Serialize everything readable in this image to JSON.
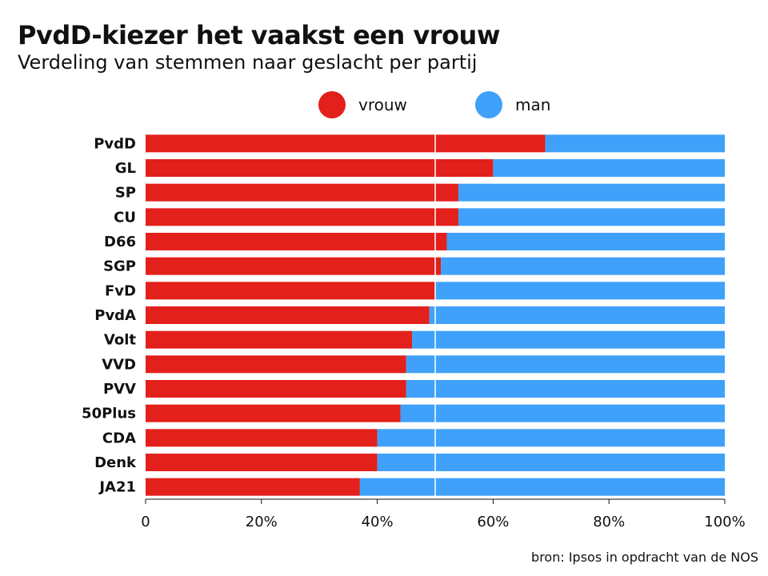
{
  "title": "PvdD-kiezer het vaakst een vrouw",
  "subtitle": "Verdeling van stemmen naar geslacht per partij",
  "source": "bron: Ipsos in opdracht van de NOS",
  "colors": {
    "vrouw": "#e3201b",
    "man": "#3fa1fa",
    "text": "#111111",
    "axis": "#111111",
    "gridline": "#ffffff",
    "background": "#ffffff"
  },
  "legend": [
    {
      "key": "vrouw",
      "label": "vrouw"
    },
    {
      "key": "man",
      "label": "man"
    }
  ],
  "chart_data": {
    "type": "bar",
    "orientation": "horizontal",
    "stacked": "percent",
    "categories": [
      "PvdD",
      "GL",
      "SP",
      "CU",
      "D66",
      "SGP",
      "FvD",
      "PvdA",
      "Volt",
      "VVD",
      "PVV",
      "50Plus",
      "CDA",
      "Denk",
      "JA21"
    ],
    "series": [
      {
        "name": "vrouw",
        "values": [
          69,
          60,
          54,
          54,
          52,
          51,
          50,
          49,
          46,
          45,
          45,
          44,
          40,
          40,
          37
        ]
      },
      {
        "name": "man",
        "values": [
          31,
          40,
          46,
          46,
          48,
          49,
          50,
          51,
          54,
          55,
          55,
          56,
          60,
          60,
          63
        ]
      }
    ],
    "xlim": [
      0,
      100
    ],
    "xticks": [
      0,
      20,
      40,
      60,
      80,
      100
    ],
    "xtick_labels": [
      "0",
      "20%",
      "40%",
      "60%",
      "80%",
      "100%"
    ],
    "reference_line": 50,
    "legend_position": "top",
    "grid": false
  }
}
